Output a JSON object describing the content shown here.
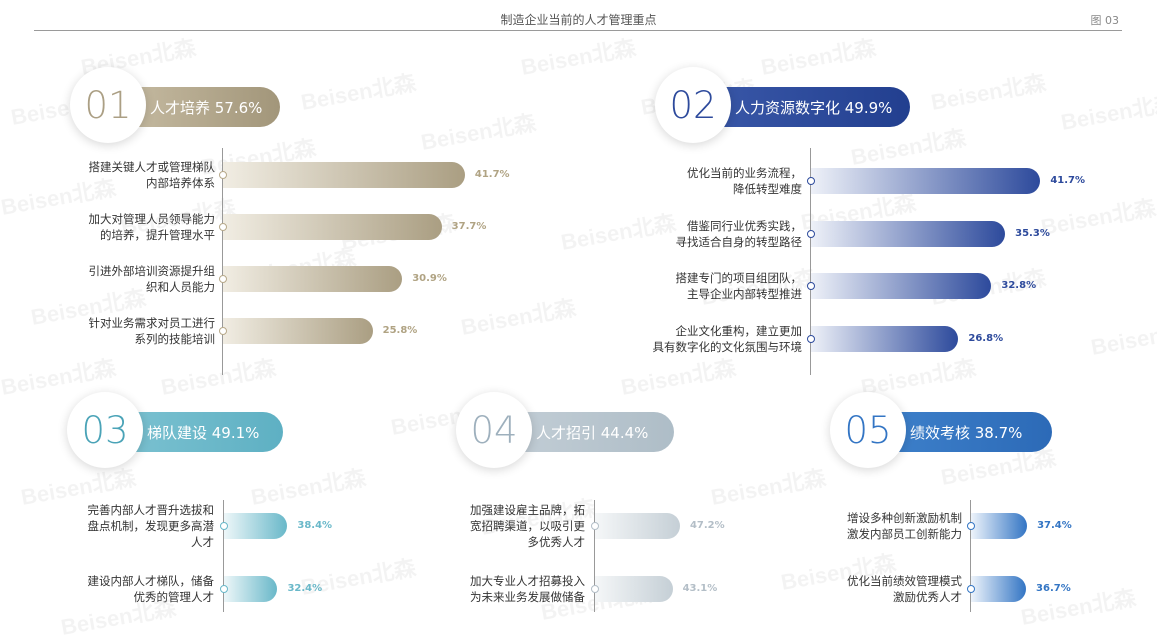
{
  "header": {
    "title": "制造企业当前的人才管理重点",
    "figure_label": "图 03"
  },
  "watermark_text": "Beisen北森",
  "colors": {
    "gold": "#ab9f84",
    "navy": "#2d4a9c",
    "teal": "#69b8c9",
    "gray_blue": "#b8c5ce",
    "blue": "#3375c4"
  },
  "chart_data": [
    {
      "type": "bar",
      "number": "01",
      "title": "人才培养 57.6%",
      "categories": [
        "搭建关键人才或管理梯队\n内部培养体系",
        "加大对管理人员领导能力\n的培养，提升管理水平",
        "引进外部培训资源提升组\n织和人员能力",
        "针对业务需求对员工进行\n系列的技能培训"
      ],
      "values": [
        41.7,
        37.7,
        30.9,
        25.8
      ],
      "value_labels": [
        "41.7%",
        "37.7%",
        "30.9%",
        "25.8%"
      ]
    },
    {
      "type": "bar",
      "number": "02",
      "title": "人力资源数字化 49.9%",
      "categories": [
        "优化当前的业务流程，\n降低转型难度",
        "借鉴同行业优秀实践，\n寻找适合自身的转型路径",
        "搭建专门的项目组团队，\n主导企业内部转型推进",
        "企业文化重构，建立更加\n具有数字化的文化氛围与环境"
      ],
      "values": [
        41.7,
        35.3,
        32.8,
        26.8
      ],
      "value_labels": [
        "41.7%",
        "35.3%",
        "32.8%",
        "26.8%"
      ]
    },
    {
      "type": "bar",
      "number": "03",
      "title": "梯队建设 49.1%",
      "categories": [
        "完善内部人才晋升选拔和\n盘点机制，发现更多高潜\n人才",
        "建设内部人才梯队，储备\n优秀的管理人才"
      ],
      "values": [
        38.4,
        32.4
      ],
      "value_labels": [
        "38.4%",
        "32.4%"
      ]
    },
    {
      "type": "bar",
      "number": "04",
      "title": "人才招引 44.4%",
      "categories": [
        "加强建设雇主品牌，拓\n宽招聘渠道，以吸引更\n多优秀人才",
        "加大专业人才招募投入\n为未来业务发展做储备"
      ],
      "values": [
        47.2,
        43.1
      ],
      "value_labels": [
        "47.2%",
        "43.1%"
      ]
    },
    {
      "type": "bar",
      "number": "05",
      "title": "绩效考核 38.7%",
      "categories": [
        "增设多种创新激励机制\n激发内部员工创新能力",
        "优化当前绩效管理模式\n激励优秀人才"
      ],
      "values": [
        37.4,
        36.7
      ],
      "value_labels": [
        "37.4%",
        "36.7%"
      ]
    }
  ]
}
